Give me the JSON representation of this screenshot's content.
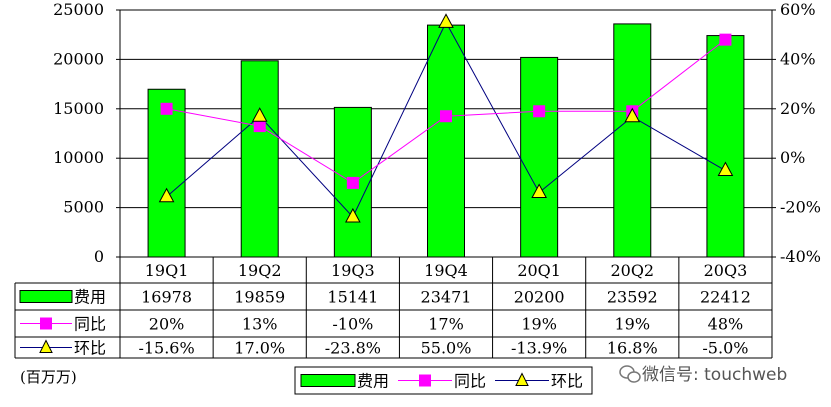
{
  "chart_data": {
    "type": "bar",
    "categories": [
      "19Q1",
      "19Q2",
      "19Q3",
      "19Q4",
      "20Q1",
      "20Q2",
      "20Q3"
    ],
    "series": [
      {
        "name": "费用",
        "type": "bar",
        "axis": "left",
        "color": "#00ff00",
        "values": [
          16978,
          19859,
          15141,
          23471,
          20200,
          23592,
          22412
        ],
        "labels": [
          "16978",
          "19859",
          "15141",
          "23471",
          "20200",
          "23592",
          "22412"
        ]
      },
      {
        "name": "同比",
        "type": "line",
        "axis": "right",
        "color": "#ff00ff",
        "marker": "square",
        "values": [
          20,
          13,
          -10,
          17,
          19,
          19,
          48
        ],
        "labels": [
          "20%",
          "13%",
          "-10%",
          "17%",
          "19%",
          "19%",
          "48%"
        ]
      },
      {
        "name": "环比",
        "type": "line",
        "axis": "right",
        "color": "#ffff00",
        "line_color": "#000080",
        "marker": "triangle",
        "values": [
          -15.6,
          17.0,
          -23.8,
          55.0,
          -13.9,
          16.8,
          -5.0
        ],
        "labels": [
          "-15.6%",
          "17.0%",
          "-23.8%",
          "55.0%",
          "-13.9%",
          "16.8%",
          "-5.0%"
        ]
      }
    ],
    "y_left": {
      "ylim": [
        0,
        25000
      ],
      "ticks": [
        "0",
        "5000",
        "10000",
        "15000",
        "20000",
        "25000"
      ]
    },
    "y_right": {
      "ylim": [
        -40,
        60
      ],
      "ticks": [
        "-40%",
        "-20%",
        "0%",
        "20%",
        "40%",
        "60%"
      ]
    },
    "unit_note": "(百万万)",
    "grid": true,
    "legend_position": "bottom",
    "data_table": true
  },
  "legend": {
    "items": [
      "费用",
      "同比",
      "环比"
    ]
  },
  "watermark": "微信号: touchweb"
}
